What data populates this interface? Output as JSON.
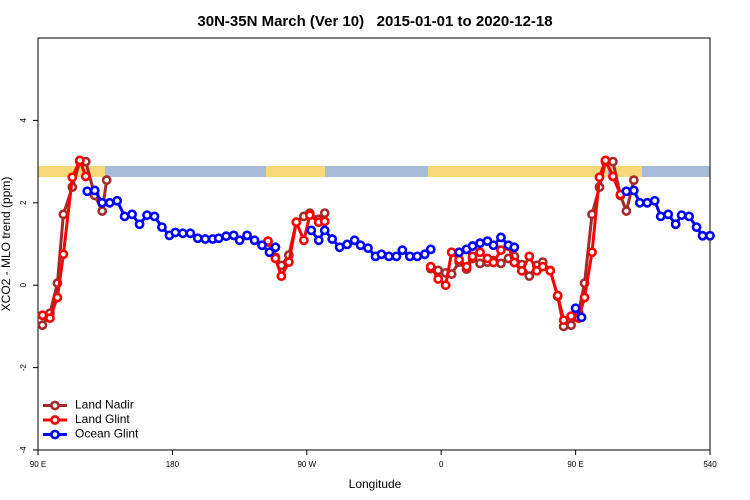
{
  "chart_data": {
    "type": "line",
    "title": "30N-35N March (Ver 10)   2015-01-01 to 2020-12-18",
    "xlabel": "Longitude",
    "ylabel": "XCO2 - MLO trend (ppm)",
    "xlim": [
      90,
      540
    ],
    "ylim": [
      -4,
      6
    ],
    "xticks": [
      {
        "value": 90,
        "label": "90 E"
      },
      180,
      {
        "value": 270,
        "label": "90 W"
      },
      {
        "value": 360,
        "label": "0"
      },
      {
        "value": 450,
        "label": "90 E"
      },
      540
    ],
    "yticks": [
      -4,
      -2,
      0,
      2,
      4
    ],
    "legend": "bottom-left",
    "series": [
      {
        "name": "Land Nadir",
        "color": "#a52a2a",
        "x": [
          93,
          98,
          103,
          107,
          113,
          118,
          122,
          128,
          133,
          136,
          190,
          244,
          249,
          253,
          258,
          263,
          268,
          272,
          278,
          282,
          318,
          353,
          358,
          363,
          367,
          372,
          377,
          381,
          386,
          391,
          395,
          400,
          405,
          409,
          414,
          419,
          424,
          428,
          433,
          438,
          442,
          447,
          452,
          456,
          461,
          466,
          470,
          475,
          480,
          484,
          489
        ],
        "values": [
          -0.97,
          -0.68,
          0.05,
          1.72,
          2.38,
          3.0,
          3.0,
          2.18,
          1.8,
          2.55,
          null,
          1.05,
          0.68,
          0.48,
          0.73,
          1.53,
          1.67,
          1.75,
          1.6,
          1.75,
          null,
          0.4,
          0.36,
          0.3,
          0.27,
          0.56,
          0.39,
          0.65,
          0.53,
          0.56,
          0.6,
          0.53,
          0.65,
          0.7,
          0.5,
          0.22,
          0.48,
          0.56,
          0.36,
          -0.27,
          -1.0,
          -0.97,
          -0.65,
          0.05,
          1.72,
          2.38,
          3.0,
          3.0,
          2.18,
          1.8,
          2.55
        ]
      },
      {
        "name": "Land Glint",
        "color": "#ff0000",
        "x": [
          93,
          98,
          103,
          107,
          113,
          118,
          122,
          190,
          244,
          249,
          253,
          258,
          263,
          268,
          272,
          278,
          282,
          318,
          353,
          358,
          363,
          367,
          372,
          377,
          381,
          386,
          391,
          395,
          400,
          405,
          409,
          414,
          419,
          424,
          428,
          433,
          438,
          442,
          447,
          452,
          456,
          461,
          466,
          470,
          475,
          480
        ],
        "values": [
          -0.73,
          -0.8,
          -0.3,
          0.75,
          2.62,
          3.03,
          2.64,
          null,
          1.07,
          0.65,
          0.22,
          0.56,
          1.53,
          1.09,
          1.7,
          1.53,
          1.55,
          null,
          0.45,
          0.15,
          0.0,
          0.8,
          0.62,
          0.45,
          0.7,
          0.8,
          0.65,
          0.55,
          0.85,
          0.95,
          0.55,
          0.35,
          0.7,
          0.35,
          0.45,
          0.35,
          -0.25,
          -0.85,
          -0.75,
          -0.8,
          -0.3,
          0.8,
          2.62,
          3.03,
          2.64,
          2.2
        ]
      },
      {
        "name": "Ocean Glint",
        "color": "#0000ff",
        "x": [
          123,
          128,
          133,
          138,
          143,
          148,
          153,
          158,
          163,
          168,
          173,
          178,
          182,
          187,
          192,
          197,
          202,
          207,
          211,
          216,
          221,
          225,
          230,
          235,
          240,
          245,
          249,
          262,
          273,
          278,
          282,
          287,
          292,
          297,
          302,
          306,
          311,
          316,
          320,
          325,
          330,
          334,
          339,
          344,
          349,
          353,
          362,
          372,
          377,
          381,
          386,
          391,
          395,
          400,
          405,
          409,
          430,
          450,
          454,
          470,
          484,
          489,
          493,
          498,
          503,
          507,
          512,
          517,
          521,
          526,
          531,
          535,
          540
        ],
        "values": [
          2.28,
          2.3,
          2.0,
          2.0,
          2.05,
          1.67,
          1.72,
          1.48,
          1.7,
          1.67,
          1.41,
          1.21,
          1.28,
          1.26,
          1.26,
          1.14,
          1.12,
          1.12,
          1.14,
          1.19,
          1.21,
          1.09,
          1.21,
          1.09,
          0.97,
          0.8,
          0.92,
          null,
          1.33,
          1.09,
          1.33,
          1.12,
          0.92,
          0.99,
          1.09,
          0.97,
          0.9,
          0.7,
          0.75,
          0.7,
          0.7,
          0.85,
          0.7,
          0.7,
          0.75,
          0.87,
          null,
          0.8,
          0.87,
          0.95,
          1.02,
          1.07,
          0.97,
          1.16,
          0.97,
          0.92,
          null,
          -0.56,
          -0.78,
          null,
          2.28,
          2.3,
          2.0,
          2.0,
          2.05,
          1.67,
          1.72,
          1.48,
          1.7,
          1.67,
          1.41,
          1.2,
          1.2
        ]
      }
    ]
  }
}
